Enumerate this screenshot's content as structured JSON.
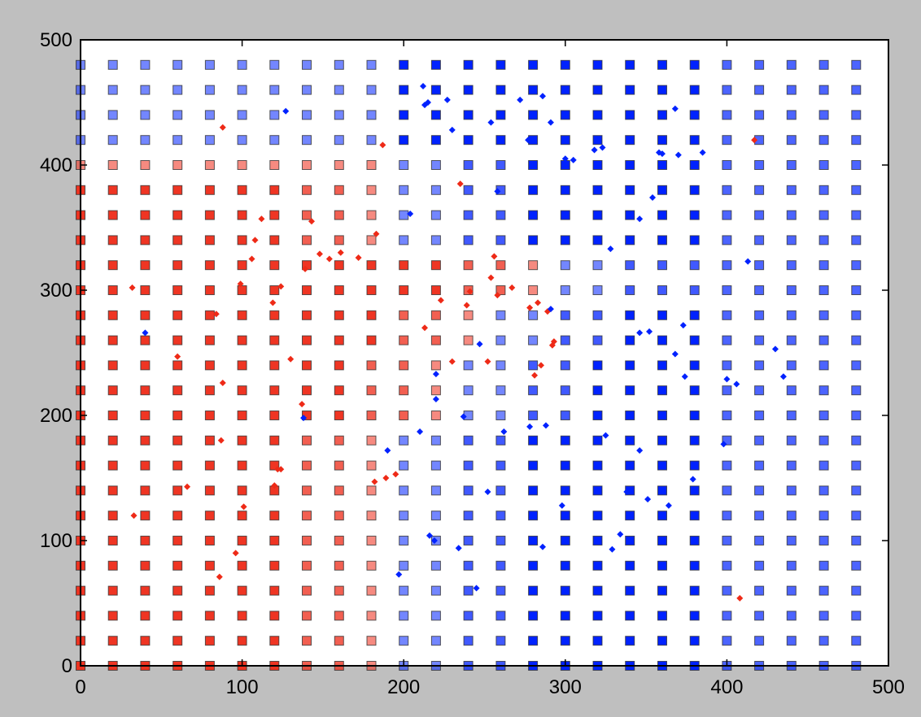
{
  "chart_data": {
    "type": "scatter",
    "title": "",
    "xlabel": "",
    "ylabel": "",
    "xlim": [
      0,
      500
    ],
    "ylim": [
      0,
      500
    ],
    "x_ticks": [
      0,
      100,
      200,
      300,
      400,
      500
    ],
    "y_ticks": [
      0,
      100,
      200,
      300,
      400,
      500
    ],
    "x_tick_labels": [
      "0",
      "100",
      "200",
      "300",
      "400",
      "500"
    ],
    "y_tick_labels": [
      "0",
      "100",
      "200",
      "300",
      "400",
      "500"
    ],
    "grid": false,
    "legend": "none",
    "colors": {
      "class_red": "#ee2a17",
      "class_blue": "#0022ff",
      "background": "#bfbfbf",
      "plot_area": "#ffffff"
    },
    "decision_grid": {
      "marker": "square",
      "x_values": [
        0,
        20,
        40,
        60,
        80,
        100,
        120,
        140,
        160,
        180,
        200,
        220,
        240,
        260,
        280,
        300,
        320,
        340,
        360,
        380,
        400,
        420,
        440,
        460,
        480
      ],
      "y_values": [
        0,
        20,
        40,
        60,
        80,
        100,
        120,
        140,
        160,
        180,
        200,
        220,
        240,
        260,
        280,
        300,
        320,
        340,
        360,
        380,
        400,
        420,
        440,
        460,
        480
      ],
      "note_levels": "red 1/0.75/0.55, blue 1/0.75/0.55 by cell"
    },
    "series": [
      {
        "marker": "diamond",
        "color": "#ee2a17",
        "x": [
          88,
          187,
          417,
          235,
          112,
          143,
          108,
          161,
          148,
          172,
          154,
          106,
          99,
          124,
          32,
          139,
          119,
          183,
          241,
          239,
          278,
          256,
          267,
          84,
          60,
          130,
          137,
          88,
          293,
          285,
          230,
          252,
          195,
          281,
          87,
          124,
          189,
          66,
          122,
          120,
          101,
          33,
          96,
          86,
          408,
          182,
          254,
          223,
          283,
          289,
          258,
          213,
          292
        ],
        "y": [
          430,
          416,
          420,
          385,
          357,
          355,
          340,
          330,
          329,
          326,
          325,
          325,
          305,
          303,
          302,
          317,
          290,
          345,
          299,
          288,
          286,
          327,
          302,
          281,
          247,
          245,
          209,
          226,
          259,
          240,
          243,
          243,
          153,
          232,
          180,
          157,
          150,
          143,
          157,
          144,
          127,
          120,
          90,
          71,
          54,
          147,
          310,
          292,
          290,
          283,
          296,
          270,
          256
        ]
      },
      {
        "marker": "diamond",
        "color": "#0022ff",
        "x": [
          127,
          212,
          213,
          215,
          227,
          254,
          272,
          286,
          291,
          300,
          323,
          358,
          360,
          370,
          385,
          368,
          354,
          258,
          204,
          346,
          328,
          291,
          373,
          346,
          352,
          368,
          413,
          406,
          430,
          40,
          138,
          247,
          220,
          237,
          262,
          278,
          288,
          325,
          346,
          400,
          379,
          190,
          216,
          210,
          351,
          364,
          338,
          334,
          298,
          252,
          197,
          219,
          234,
          329,
          286,
          245,
          305,
          318,
          277,
          230,
          435,
          398,
          374,
          220
        ],
        "y": [
          443,
          463,
          448,
          450,
          452,
          434,
          452,
          455,
          434,
          405,
          414,
          410,
          409,
          408,
          410,
          445,
          374,
          379,
          361,
          357,
          333,
          285,
          272,
          266,
          267,
          249,
          323,
          225,
          253,
          266,
          198,
          257,
          213,
          199,
          187,
          191,
          192,
          184,
          172,
          229,
          149,
          172,
          104,
          187,
          133,
          128,
          139,
          105,
          128,
          139,
          73,
          100,
          94,
          93,
          95,
          62,
          404,
          412,
          420,
          428,
          231,
          177,
          231,
          233
        ]
      }
    ]
  }
}
